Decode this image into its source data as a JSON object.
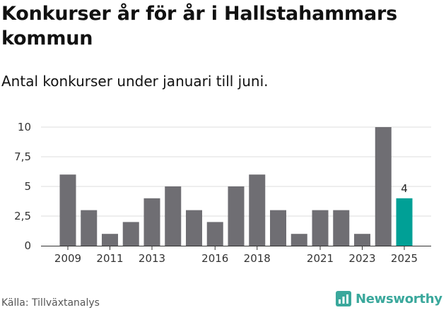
{
  "header": {
    "title": "Konkurser år för år i Hallstahammars kommun",
    "subtitle": "Antal konkurser under januari till juni."
  },
  "footer": {
    "source": "Källa: Tillväxtanalys",
    "brand": "Newsworthy"
  },
  "colors": {
    "bar": "#6f6e73",
    "highlight": "#00a096",
    "grid": "#dddddd",
    "brand": "#3aa89c"
  },
  "chart_data": {
    "type": "bar",
    "categories": [
      "2009",
      "2010",
      "2011",
      "2012",
      "2013",
      "2014",
      "2015",
      "2016",
      "2017",
      "2018",
      "2019",
      "2020",
      "2021",
      "2022",
      "2023",
      "2024",
      "2025"
    ],
    "values": [
      6,
      3,
      1,
      2,
      4,
      5,
      3,
      2,
      5,
      6,
      3,
      1,
      3,
      3,
      1,
      10,
      4
    ],
    "highlight_index": 16,
    "data_labels": [
      {
        "index": 16,
        "text": "4"
      }
    ],
    "xtick_labels": [
      "2009",
      "2011",
      "2013",
      "2016",
      "2018",
      "2021",
      "2023",
      "2025"
    ],
    "yticks": [
      0,
      2.5,
      5,
      7.5,
      10
    ],
    "ytick_labels": [
      "0",
      "2,5",
      "5",
      "7,5",
      "10"
    ],
    "ylim": [
      0,
      10
    ],
    "grid": true,
    "legend": "none"
  }
}
